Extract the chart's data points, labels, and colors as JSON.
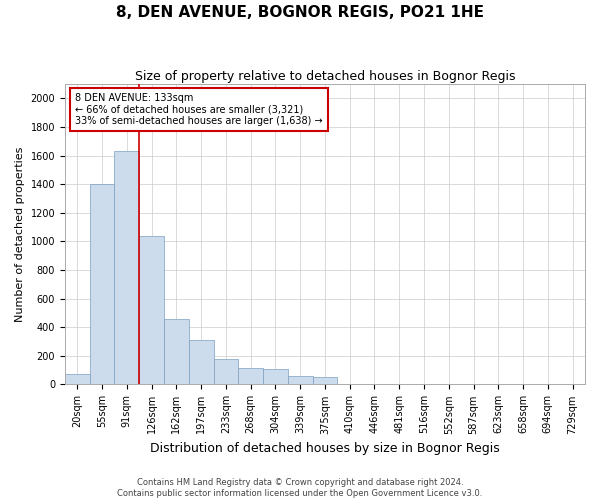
{
  "title": "8, DEN AVENUE, BOGNOR REGIS, PO21 1HE",
  "subtitle": "Size of property relative to detached houses in Bognor Regis",
  "xlabel": "Distribution of detached houses by size in Bognor Regis",
  "ylabel": "Number of detached properties",
  "footer_line1": "Contains HM Land Registry data © Crown copyright and database right 2024.",
  "footer_line2": "Contains public sector information licensed under the Open Government Licence v3.0.",
  "categories": [
    "20sqm",
    "55sqm",
    "91sqm",
    "126sqm",
    "162sqm",
    "197sqm",
    "233sqm",
    "268sqm",
    "304sqm",
    "339sqm",
    "375sqm",
    "410sqm",
    "446sqm",
    "481sqm",
    "516sqm",
    "552sqm",
    "587sqm",
    "623sqm",
    "658sqm",
    "694sqm",
    "729sqm"
  ],
  "values": [
    70,
    1400,
    1630,
    1040,
    460,
    310,
    175,
    115,
    105,
    60,
    55,
    0,
    0,
    0,
    0,
    0,
    0,
    0,
    0,
    0,
    0
  ],
  "bar_color": "#ccdcec",
  "bar_edge_color": "#7a9fc0",
  "annotation_text": "8 DEN AVENUE: 133sqm\n← 66% of detached houses are smaller (3,321)\n33% of semi-detached houses are larger (1,638) →",
  "annotation_box_color": "white",
  "annotation_box_edge": "#cc0000",
  "vline_x_index": 3,
  "vline_color": "#cc0000",
  "ylim": [
    0,
    2100
  ],
  "yticks": [
    0,
    200,
    400,
    600,
    800,
    1000,
    1200,
    1400,
    1600,
    1800,
    2000
  ],
  "title_fontsize": 11,
  "subtitle_fontsize": 9,
  "xlabel_fontsize": 9,
  "ylabel_fontsize": 8,
  "tick_fontsize": 7,
  "footer_fontsize": 6,
  "background_color": "#ffffff",
  "grid_color": "#cccccc"
}
